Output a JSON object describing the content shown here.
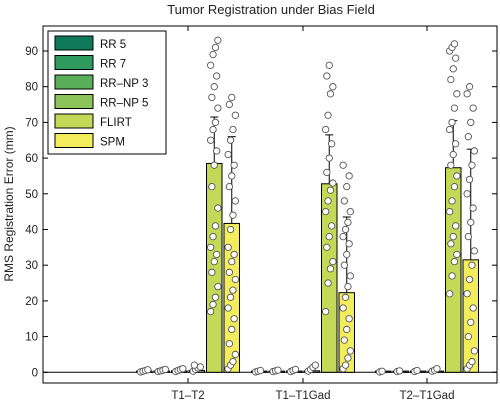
{
  "chart_data": {
    "type": "bar",
    "title": "Tumor Registration under Bias Field",
    "xlabel": "",
    "ylabel": "RMS Registration Error (mm)",
    "ylim": [
      -3,
      97
    ],
    "yticks": [
      0,
      10,
      20,
      30,
      40,
      50,
      60,
      70,
      80,
      90
    ],
    "categories": [
      "T1–T2",
      "T1–T1Gad",
      "T2–T1Gad"
    ],
    "legend_position": "top-left",
    "series": [
      {
        "name": "RR 5",
        "color": "#0f7a5a",
        "values": [
          0.3,
          0.3,
          0.2
        ],
        "err_upper": [
          0.4,
          0.4,
          0.3
        ]
      },
      {
        "name": "RR 7",
        "color": "#2e9a5e",
        "values": [
          0.3,
          0.3,
          0.2
        ],
        "err_upper": [
          0.4,
          0.4,
          0.3
        ]
      },
      {
        "name": "RR–NP 3",
        "color": "#5aae5a",
        "values": [
          0.4,
          0.3,
          0.2
        ],
        "err_upper": [
          0.5,
          0.4,
          0.3
        ]
      },
      {
        "name": "RR–NP 5",
        "color": "#8cc45a",
        "values": [
          0.5,
          0.4,
          0.3
        ],
        "err_upper": [
          0.6,
          0.5,
          0.4
        ]
      },
      {
        "name": "FLIRT",
        "color": "#c3d957",
        "values": [
          58.5,
          52.8,
          57.3
        ],
        "err_upper": [
          71.5,
          66.5,
          70.5
        ]
      },
      {
        "name": "SPM",
        "color": "#f3ed5c",
        "values": [
          41.7,
          22.3,
          31.5
        ],
        "err_upper": [
          66.0,
          43.5,
          62.5
        ]
      }
    ],
    "points": [
      [
        [
          0.1,
          0.3,
          0.5,
          0.7
        ],
        [
          0.2,
          0.4,
          0.6,
          0.8
        ],
        [
          0.2,
          0.5,
          0.8,
          1.0
        ],
        [
          0.3,
          0.8,
          1.2,
          1.5,
          2.0
        ],
        [
          17,
          19,
          21,
          24,
          28,
          31,
          33,
          35,
          38,
          41,
          46,
          52,
          58,
          62,
          65,
          68,
          70,
          74,
          77,
          80,
          83,
          86,
          89,
          91,
          93
        ],
        [
          1,
          2,
          3,
          5,
          8,
          12,
          15,
          18,
          21,
          23,
          26,
          28,
          31,
          33,
          35,
          40,
          44,
          48,
          52,
          55,
          58,
          61,
          65,
          68,
          72,
          75,
          77
        ]
      ],
      [
        [
          0.1,
          0.3,
          0.5
        ],
        [
          0.2,
          0.4,
          0.6
        ],
        [
          0.2,
          0.5,
          0.8
        ],
        [
          0.3,
          0.8,
          1.4,
          2.0
        ],
        [
          17,
          25,
          29,
          31,
          35,
          38,
          41,
          45,
          48,
          51,
          53,
          56,
          60,
          64,
          68,
          72,
          78,
          80,
          83,
          86
        ],
        [
          1,
          2,
          4,
          6,
          9,
          12,
          15,
          18,
          21,
          24,
          27,
          30,
          33,
          36,
          38,
          40,
          42,
          45,
          48,
          52,
          55,
          58
        ]
      ],
      [
        [
          0.1,
          0.3
        ],
        [
          0.2,
          0.4
        ],
        [
          0.2,
          0.5
        ],
        [
          0.3,
          0.6,
          1.0
        ],
        [
          22,
          27,
          31,
          33,
          36,
          38,
          41,
          45,
          48,
          52,
          55,
          58,
          61,
          64,
          68,
          70,
          74,
          78,
          82,
          85,
          88,
          90,
          91,
          92
        ],
        [
          1,
          2,
          3,
          6,
          10,
          14,
          18,
          22,
          26,
          30,
          34,
          38,
          42,
          46,
          50,
          54,
          58,
          62,
          66,
          70,
          74,
          78,
          80
        ]
      ]
    ]
  }
}
